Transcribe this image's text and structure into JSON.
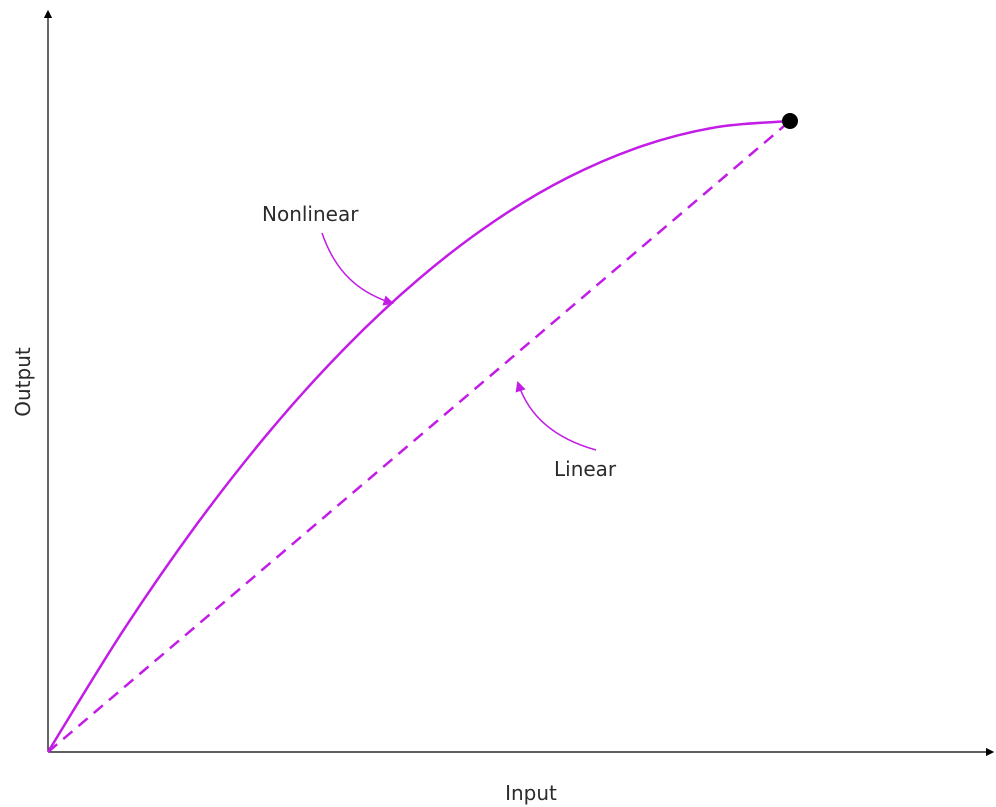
{
  "chart_data": {
    "type": "line",
    "title": "",
    "xlabel": "Input",
    "ylabel": "Output",
    "xlim": [
      0,
      1
    ],
    "ylim": [
      0,
      1
    ],
    "grid": false,
    "series": [
      {
        "name": "Nonlinear",
        "style": "solid",
        "x": [
          0,
          0.1,
          0.2,
          0.3,
          0.4,
          0.5,
          0.6,
          0.7,
          0.8,
          0.9,
          1.0
        ],
        "y": [
          0,
          0.19,
          0.36,
          0.51,
          0.64,
          0.75,
          0.84,
          0.91,
          0.96,
          0.99,
          1.0
        ]
      },
      {
        "name": "Linear",
        "style": "dashed",
        "x": [
          0,
          1
        ],
        "y": [
          0,
          1
        ]
      }
    ],
    "endpoint": {
      "x": 1,
      "y": 1
    },
    "annotations": [
      {
        "text": "Nonlinear",
        "target_series": "Nonlinear"
      },
      {
        "text": "Linear",
        "target_series": "Linear"
      }
    ],
    "colors": {
      "series": "#c21ce6",
      "axis": "#000000",
      "text": "#2b2b2b",
      "endpoint": "#000000"
    }
  }
}
